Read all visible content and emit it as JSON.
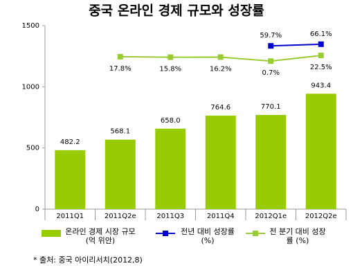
{
  "chart_data": {
    "type": "bar",
    "title": "중국 온라인 경제 규모와 성장률",
    "categories": [
      "2011Q1",
      "2011Q2e",
      "2011Q3",
      "2011Q4",
      "2012Q1e",
      "2012Q2e"
    ],
    "series": [
      {
        "name": "온라인 경제 시장 규모 (억 위안)",
        "color": "#99cc00",
        "type": "bar",
        "values": [
          482.2,
          568.1,
          658.0,
          764.6,
          770.1,
          943.4
        ],
        "value_labels": [
          "482.2",
          "568.1",
          "658.0",
          "764.6",
          "770.1",
          "943.4"
        ]
      },
      {
        "name": "전년 대비 성장률 (%)",
        "color": "#0000cc",
        "type": "line",
        "axis": "y2",
        "values": [
          null,
          null,
          null,
          null,
          59.7,
          66.1
        ],
        "value_labels": [
          null,
          null,
          null,
          null,
          "59.7%",
          "66.1%"
        ]
      },
      {
        "name": "전 분기 대비 성장률 (%)",
        "color": "#99cc33",
        "type": "line",
        "axis": "y2",
        "values": [
          null,
          17.8,
          15.8,
          16.2,
          0.7,
          22.5
        ],
        "value_labels": [
          null,
          "17.8%",
          "15.8%",
          "16.2%",
          "0.7%",
          "22.5%"
        ]
      }
    ],
    "ylim": [
      0,
      1500
    ],
    "yticks": [
      0,
      500,
      1000,
      1500
    ],
    "y2lim": [
      -572,
      138
    ],
    "legend": "bottom",
    "footnote": "* 출처: 중국 아이리서치(2012,8)"
  }
}
